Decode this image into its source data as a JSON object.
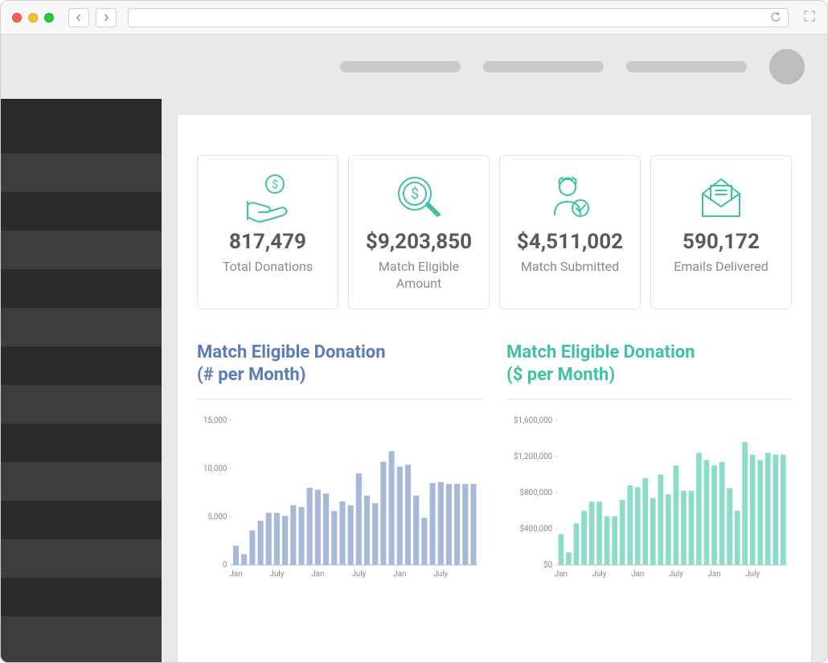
{
  "colors": {
    "teal": "#3fc1a3",
    "blue": "#5a7cb8",
    "bar_blue": "#a8b8d8",
    "bar_teal": "#8bdcc8",
    "card_border": "#e3e3e3",
    "text_gray": "#5a5a5a",
    "label_gray": "#8a8a8a"
  },
  "header": {
    "pill_widths": [
      150,
      150,
      150
    ]
  },
  "kpis": [
    {
      "id": "total-donations",
      "value": "817,479",
      "label": "Total Donations",
      "icon": "hand-dollar"
    },
    {
      "id": "match-eligible-amount",
      "value": "$9,203,850",
      "label": "Match Eligible Amount",
      "icon": "magnify-dollar"
    },
    {
      "id": "match-submitted",
      "value": "$4,511,002",
      "label": "Match Submitted",
      "icon": "person-check"
    },
    {
      "id": "emails-delivered",
      "value": "590,172",
      "label": "Emails Delivered",
      "icon": "envelope"
    }
  ],
  "chart_count": {
    "title_line1": "Match Eligible Donation",
    "title_line2": "(# per Month)",
    "type": "bar",
    "color": "#a8b8d8",
    "ylim": [
      0,
      15000
    ],
    "yticks": [
      0,
      5000,
      10000,
      15000
    ],
    "ytick_labels": [
      "0",
      "5,000",
      "10,000",
      "15,000"
    ],
    "x_group_labels": [
      "Jan",
      "July",
      "Jan",
      "July",
      "Jan",
      "July"
    ],
    "values": [
      2000,
      1100,
      3600,
      4600,
      5400,
      5400,
      5100,
      6200,
      6000,
      8000,
      7800,
      7400,
      5600,
      6600,
      6200,
      9500,
      7200,
      6400,
      10700,
      11800,
      10200,
      10400,
      7200,
      4900,
      8500,
      8600,
      8400,
      8400,
      8400,
      8400
    ]
  },
  "chart_amount": {
    "title_line1": "Match Eligible Donation",
    "title_line2": "($ per Month)",
    "type": "bar",
    "color": "#8bdcc8",
    "ylim": [
      0,
      1600000
    ],
    "yticks": [
      0,
      400000,
      800000,
      1200000,
      1600000
    ],
    "ytick_labels": [
      "$0",
      "$400,000",
      "$800,000",
      "$1,200,000",
      "$1,600,000"
    ],
    "x_group_labels": [
      "Jan",
      "July",
      "Jan",
      "July",
      "Jan",
      "July"
    ],
    "values": [
      340000,
      140000,
      460000,
      600000,
      700000,
      700000,
      540000,
      540000,
      720000,
      880000,
      860000,
      960000,
      740000,
      1000000,
      780000,
      1100000,
      820000,
      820000,
      1240000,
      1160000,
      1100000,
      1140000,
      850000,
      600000,
      1360000,
      1220000,
      1160000,
      1240000,
      1220000,
      1220000
    ]
  }
}
